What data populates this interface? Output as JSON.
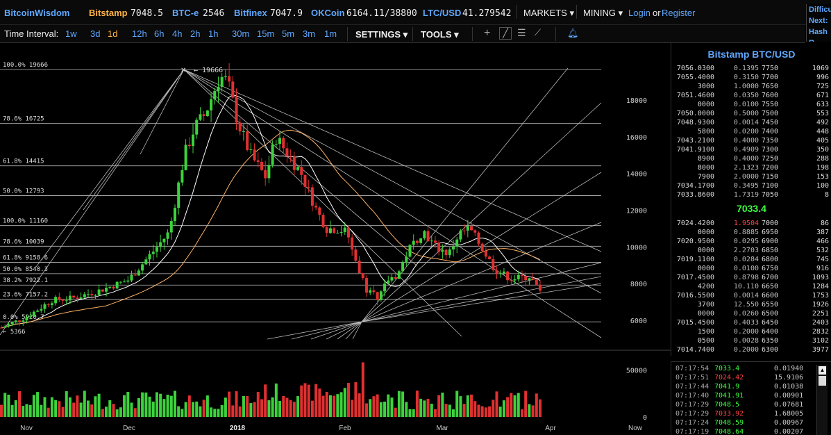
{
  "topbar": {
    "brand": "BitcoinWisdom",
    "exchanges": [
      {
        "name": "Bitstamp",
        "value": "7048.5",
        "color": "orange"
      },
      {
        "name": "BTC-e",
        "value": "2546",
        "color": "blue"
      },
      {
        "name": "Bitfinex",
        "value": "7047.9",
        "color": "blue"
      },
      {
        "name": "OKCoin",
        "value": "6164.11/38800",
        "color": "blue"
      },
      {
        "name": "LTC/USD",
        "value": "41.279542",
        "color": "blue"
      }
    ],
    "markets_label": "MARKETS",
    "mining_label": "MINING",
    "login_label": "Login",
    "or_label": "or",
    "register_label": "Register",
    "side_lines": [
      "Difficu",
      "Next:",
      "Hash R"
    ]
  },
  "toolbar": {
    "time_interval_label": "Time Interval:",
    "intervals": [
      "1w",
      "3d",
      "1d",
      "12h",
      "6h",
      "4h",
      "2h",
      "1h",
      "30m",
      "15m",
      "5m",
      "3m",
      "1m"
    ],
    "active_interval": "1d",
    "settings_label": "SETTINGS",
    "tools_label": "TOOLS",
    "tool_icons": [
      "crosshair-icon",
      "draw-line-icon",
      "horizontal-lines-icon",
      "fan-icon",
      "alert-bell-icon"
    ]
  },
  "chart_data": {
    "type": "candlestick",
    "title": "",
    "x_tick_labels": [
      "Nov",
      "Dec",
      "2018",
      "Feb",
      "Mar",
      "Apr",
      "Now"
    ],
    "y_tick_labels": [
      "18000",
      "16000",
      "14000",
      "12000",
      "10000",
      "8000",
      "6000"
    ],
    "ylim": [
      5000,
      20500
    ],
    "volume_tick_labels": [
      "50000",
      "0"
    ],
    "volume_ylim": [
      0,
      65000
    ],
    "fib_levels": [
      {
        "label": "100.0% 19666",
        "price": 19666
      },
      {
        "label": "78.6% 16725",
        "price": 16725
      },
      {
        "label": "61.8% 14415",
        "price": 14415
      },
      {
        "label": "50.0% 12793",
        "price": 12793
      },
      {
        "label": "100.0% 11160",
        "price": 11160
      },
      {
        "label": "78.6% 10039",
        "price": 10039
      },
      {
        "label": "61.8% 9158.6",
        "price": 9158.6
      },
      {
        "label": "50.0% 8540.3",
        "price": 8540.3
      },
      {
        "label": "38.2% 7922.1",
        "price": 7922.1
      },
      {
        "label": "23.6% 7157.2",
        "price": 7157.2
      },
      {
        "label": "0.0% 5920.7",
        "price": 5920.7
      }
    ],
    "high_annotation": "19666",
    "low_annotation": "5366",
    "up_color": "#3cd23c",
    "down_color": "#e03030",
    "grid": false
  },
  "orderbook": {
    "title": "Bitstamp BTC/USD",
    "asks": [
      {
        "price": "7056.0300",
        "amount": "0.1395",
        "level": "7750",
        "sum": "1069"
      },
      {
        "price": "7055.4000",
        "amount": "0.3150",
        "level": "7700",
        "sum": "996"
      },
      {
        "price": "3000",
        "amount": "1.0000",
        "level": "7650",
        "sum": "725"
      },
      {
        "price": "7051.4600",
        "amount": "0.0350",
        "level": "7600",
        "sum": "671"
      },
      {
        "price": "0000",
        "amount": "0.0100",
        "level": "7550",
        "sum": "633"
      },
      {
        "price": "7050.0000",
        "amount": "0.5000",
        "level": "7500",
        "sum": "553"
      },
      {
        "price": "7048.9300",
        "amount": "0.0014",
        "level": "7450",
        "sum": "492"
      },
      {
        "price": "5800",
        "amount": "0.0200",
        "level": "7400",
        "sum": "448"
      },
      {
        "price": "7043.2100",
        "amount": "0.4000",
        "level": "7350",
        "sum": "405"
      },
      {
        "price": "7041.9100",
        "amount": "0.4909",
        "level": "7300",
        "sum": "350"
      },
      {
        "price": "8900",
        "amount": "0.4000",
        "level": "7250",
        "sum": "288"
      },
      {
        "price": "8000",
        "amount": "2.1323",
        "level": "7200",
        "sum": "198"
      },
      {
        "price": "7900",
        "amount": "2.0000",
        "level": "7150",
        "sum": "153"
      },
      {
        "price": "7034.1700",
        "amount": "0.3495",
        "level": "7100",
        "sum": "100"
      },
      {
        "price": "7033.8600",
        "amount": "1.7319",
        "level": "7050",
        "sum": "8"
      }
    ],
    "last_price": "7033.4",
    "bids": [
      {
        "price": "7024.4200",
        "amount": "1.9504",
        "level": "7000",
        "sum": "86",
        "red": true
      },
      {
        "price": "0000",
        "amount": "0.8885",
        "level": "6950",
        "sum": "387"
      },
      {
        "price": "7020.9500",
        "amount": "0.0295",
        "level": "6900",
        "sum": "466"
      },
      {
        "price": "0000",
        "amount": "2.2703",
        "level": "6850",
        "sum": "532"
      },
      {
        "price": "7019.1100",
        "amount": "0.0284",
        "level": "6800",
        "sum": "745"
      },
      {
        "price": "0000",
        "amount": "0.0100",
        "level": "6750",
        "sum": "916"
      },
      {
        "price": "7017.4500",
        "amount": "0.8798",
        "level": "6700",
        "sum": "1093"
      },
      {
        "price": "4200",
        "amount": "10.110",
        "level": "6650",
        "sum": "1284"
      },
      {
        "price": "7016.5500",
        "amount": "0.0014",
        "level": "6600",
        "sum": "1753"
      },
      {
        "price": "3700",
        "amount": "12.550",
        "level": "6550",
        "sum": "1926"
      },
      {
        "price": "0000",
        "amount": "0.0260",
        "level": "6500",
        "sum": "2251"
      },
      {
        "price": "7015.4500",
        "amount": "0.4033",
        "level": "6450",
        "sum": "2403"
      },
      {
        "price": "1500",
        "amount": "0.2000",
        "level": "6400",
        "sum": "2832"
      },
      {
        "price": "0500",
        "amount": "0.0028",
        "level": "6350",
        "sum": "3102"
      },
      {
        "price": "7014.7400",
        "amount": "0.2000",
        "level": "6300",
        "sum": "3977"
      }
    ]
  },
  "trades": [
    {
      "time": "07:17:54",
      "price": "7033.4",
      "dir": "up",
      "amount": "0.01940"
    },
    {
      "time": "07:17:51",
      "price": "7024.42",
      "dir": "down",
      "amount": "15.9106"
    },
    {
      "time": "07:17:44",
      "price": "7041.9",
      "dir": "up",
      "amount": "0.01038"
    },
    {
      "time": "07:17:40",
      "price": "7041.91",
      "dir": "up",
      "amount": "0.00901"
    },
    {
      "time": "07:17:29",
      "price": "7048.5",
      "dir": "up",
      "amount": "0.07681"
    },
    {
      "time": "07:17:29",
      "price": "7033.92",
      "dir": "down",
      "amount": "1.68005"
    },
    {
      "time": "07:17:24",
      "price": "7048.59",
      "dir": "up",
      "amount": "0.00967"
    },
    {
      "time": "07:17:19",
      "price": "7048.64",
      "dir": "up",
      "amount": "0.00207"
    }
  ]
}
